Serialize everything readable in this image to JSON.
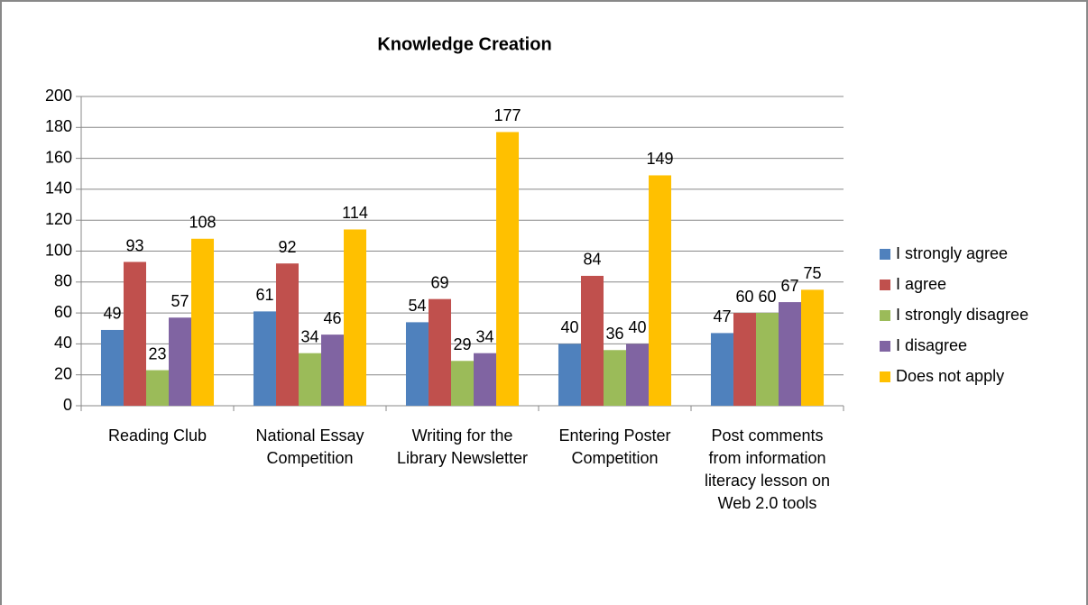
{
  "chart_data": {
    "type": "bar",
    "title": "Knowledge Creation",
    "categories": [
      "Reading Club",
      "National Essay Competition",
      "Writing for the Library Newsletter",
      "Entering Poster Competition",
      "Post comments from information literacy lesson on Web 2.0 tools"
    ],
    "series": [
      {
        "name": "I strongly agree",
        "color": "#4f81bd",
        "values": [
          49,
          61,
          54,
          40,
          47
        ]
      },
      {
        "name": "I agree",
        "color": "#c0504d",
        "values": [
          93,
          92,
          69,
          84,
          60
        ]
      },
      {
        "name": "I strongly disagree",
        "color": "#9bbb59",
        "values": [
          23,
          34,
          29,
          36,
          60
        ]
      },
      {
        "name": "I disagree",
        "color": "#8064a2",
        "values": [
          57,
          46,
          34,
          40,
          67
        ]
      },
      {
        "name": "Does not apply",
        "color": "#ffc000",
        "values": [
          108,
          114,
          177,
          149,
          75
        ]
      }
    ],
    "ylim": [
      0,
      200
    ],
    "yticks": [
      0,
      20,
      40,
      60,
      80,
      100,
      120,
      140,
      160,
      180,
      200
    ],
    "grid": true,
    "legend": "right"
  }
}
